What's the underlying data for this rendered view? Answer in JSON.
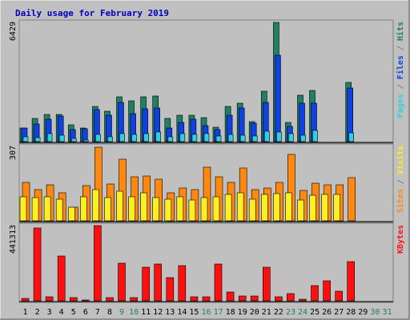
{
  "chart_data": {
    "type": "bar",
    "title": "Daily usage for February 2019",
    "categories": [
      "1",
      "2",
      "3",
      "4",
      "5",
      "6",
      "7",
      "8",
      "9",
      "10",
      "11",
      "12",
      "13",
      "14",
      "15",
      "16",
      "17",
      "18",
      "19",
      "20",
      "21",
      "22",
      "23",
      "24",
      "25",
      "26",
      "27",
      "28",
      "29",
      "30",
      "31"
    ],
    "weekend_days": [
      "9",
      "10",
      "16",
      "17",
      "23",
      "24",
      "30",
      "31"
    ],
    "colors": {
      "hits": "#208060",
      "files": "#1040e0",
      "pages": "#30d0e0",
      "visits": "#ffee22",
      "sites": "#ff8810",
      "kbytes": "#ff1010",
      "title": "#0000c0",
      "weekday": "#000000",
      "weekend": "#208060",
      "panel": "#c0c0c0",
      "frame": "#808080"
    },
    "panels": [
      {
        "id": "top",
        "max_label": "6429",
        "ymax": 6429,
        "side_label": [
          {
            "text": "Pages",
            "color": "#30d0e0"
          },
          {
            "text": " / ",
            "color": "#808080"
          },
          {
            "text": "Files",
            "color": "#1040e0"
          },
          {
            "text": " / ",
            "color": "#808080"
          },
          {
            "text": "Hits",
            "color": "#208060"
          }
        ],
        "series": [
          {
            "name": "Hits",
            "values": [
              750,
              1250,
              1480,
              1460,
              920,
              730,
              1920,
              1660,
              2400,
              2200,
              2400,
              2450,
              1250,
              1440,
              1410,
              1300,
              770,
              1920,
              2050,
              1060,
              2700,
              6429,
              1040,
              2500,
              2770,
              0,
              0,
              3200,
              0,
              0,
              0
            ]
          },
          {
            "name": "Files",
            "values": [
              720,
              940,
              1210,
              1390,
              640,
              670,
              1710,
              1430,
              2100,
              1490,
              1780,
              1810,
              740,
              1050,
              1220,
              860,
              640,
              1440,
              1800,
              980,
              2100,
              4640,
              800,
              2050,
              2080,
              0,
              0,
              2870,
              0,
              0,
              0
            ]
          },
          {
            "name": "Pages",
            "values": [
              270,
              230,
              450,
              350,
              160,
              90,
              380,
              280,
              410,
              370,
              420,
              510,
              280,
              440,
              370,
              430,
              300,
              380,
              350,
              290,
              570,
              530,
              410,
              360,
              590,
              0,
              0,
              460,
              0,
              0,
              0
            ]
          }
        ]
      },
      {
        "id": "middle",
        "max_label": "307",
        "ymax": 307,
        "side_label": [
          {
            "text": "Sites",
            "color": "#ff8810"
          },
          {
            "text": " / ",
            "color": "#808080"
          },
          {
            "text": "Visits",
            "color": "#ffee22"
          }
        ],
        "series": [
          {
            "name": "Sites",
            "values": [
              158,
              128,
              147,
              117,
              57,
              146,
              305,
              153,
              255,
              180,
              185,
              172,
              117,
              136,
              130,
              220,
              180,
              158,
              218,
              128,
              135,
              158,
              275,
              125,
              155,
              150,
              148,
              178,
              0,
              0,
              0
            ]
          },
          {
            "name": "Visits",
            "values": [
              100,
              95,
              100,
              90,
              55,
              100,
              130,
              95,
              122,
              98,
              115,
              97,
              90,
              100,
              85,
              95,
              100,
              110,
              115,
              90,
              108,
              112,
              115,
              85,
              105,
              110,
              108,
              0,
              0,
              0,
              0
            ]
          }
        ]
      },
      {
        "id": "bottom",
        "max_label": "441313",
        "ymax": 441313,
        "side_label": [
          {
            "text": "KBytes",
            "color": "#ff1010"
          }
        ],
        "series": [
          {
            "name": "KBytes",
            "values": [
              14000,
              426000,
              25000,
              262000,
              20000,
              5000,
              441313,
              20000,
              221000,
              20000,
              198000,
              214000,
              138000,
              206000,
              25000,
              25000,
              214000,
              50000,
              30000,
              30000,
              198000,
              25000,
              40000,
              10000,
              90000,
              118000,
              55000,
              229000,
              0,
              0,
              0
            ]
          }
        ]
      }
    ]
  }
}
